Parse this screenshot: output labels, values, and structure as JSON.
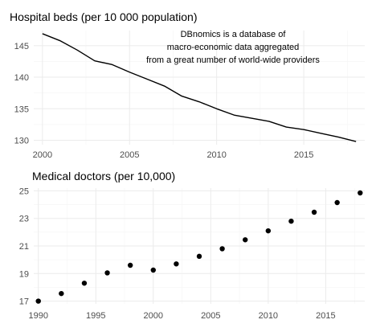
{
  "chart_data": [
    {
      "type": "line",
      "title": "Hospital beds (per 10 000 population)",
      "xlabel": "",
      "ylabel": "",
      "x": [
        2000,
        2001,
        2002,
        2003,
        2004,
        2005,
        2006,
        2007,
        2008,
        2009,
        2010,
        2011,
        2012,
        2013,
        2014,
        2015,
        2016,
        2017,
        2018
      ],
      "series": [
        {
          "values": [
            146.9,
            145.8,
            144.3,
            142.6,
            142.0,
            140.8,
            139.7,
            138.6,
            137.0,
            136.1,
            135.0,
            134.0,
            133.5,
            133.0,
            132.1,
            131.7,
            131.1,
            130.5,
            129.8
          ]
        }
      ],
      "xlim": [
        1999.5,
        2018.5
      ],
      "ylim": [
        129.3,
        147.4
      ],
      "xticks": [
        "2000",
        "2005",
        "2010",
        "2015"
      ],
      "yticks": [
        "130",
        "135",
        "140",
        "145"
      ],
      "grid": true,
      "line_color": "#000000",
      "annotation": [
        "DBnomics is a database of",
        "macro-economic data aggregated",
        "from a great number of world-wide providers"
      ]
    },
    {
      "type": "scatter",
      "title": "Medical doctors (per 10,000)",
      "xlabel": "",
      "ylabel": "",
      "x": [
        1990,
        1992,
        1994,
        1996,
        1998,
        2000,
        2002,
        2004,
        2006,
        2008,
        2010,
        2012,
        2014,
        2016,
        2018
      ],
      "series": [
        {
          "values": [
            17.0,
            17.55,
            18.3,
            19.05,
            19.6,
            19.25,
            19.7,
            20.25,
            20.8,
            21.45,
            22.1,
            22.8,
            23.45,
            24.15,
            24.85
          ]
        }
      ],
      "xlim": [
        1989.6,
        2018.4
      ],
      "ylim": [
        16.8,
        25.2
      ],
      "xticks": [
        "1990",
        "1995",
        "2000",
        "2005",
        "2010",
        "2015"
      ],
      "yticks": [
        "17",
        "19",
        "21",
        "23",
        "25"
      ],
      "grid": true,
      "point_color": "#000000"
    }
  ]
}
